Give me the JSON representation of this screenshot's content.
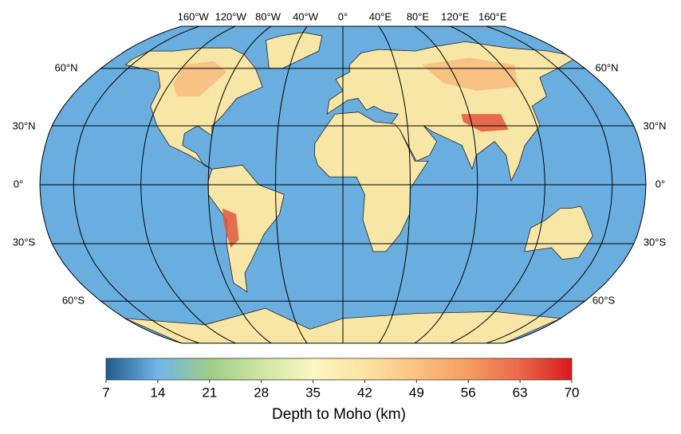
{
  "map": {
    "lon_labels": [
      "160°W",
      "120°W",
      "80°W",
      "40°W",
      "0°",
      "40°E",
      "80°E",
      "120°E",
      "160°E"
    ],
    "lat_labels_left": [
      "60°N",
      "30°N",
      "0°",
      "30°S",
      "60°S"
    ],
    "lat_labels_right": [
      "60°N",
      "30°N",
      "0°",
      "30°S",
      "60°S"
    ]
  },
  "colorbar": {
    "range": [
      7,
      70
    ],
    "ticks": [
      7,
      14,
      21,
      28,
      35,
      42,
      49,
      56,
      63,
      70
    ],
    "colors": [
      "#1f5a8a",
      "#72b6e8",
      "#9dcc86",
      "#cfe5a4",
      "#fbf6c2",
      "#fde3a0",
      "#fbc280",
      "#f59c62",
      "#ea6848",
      "#d7191c"
    ],
    "label": "Depth to Moho (km)"
  }
}
